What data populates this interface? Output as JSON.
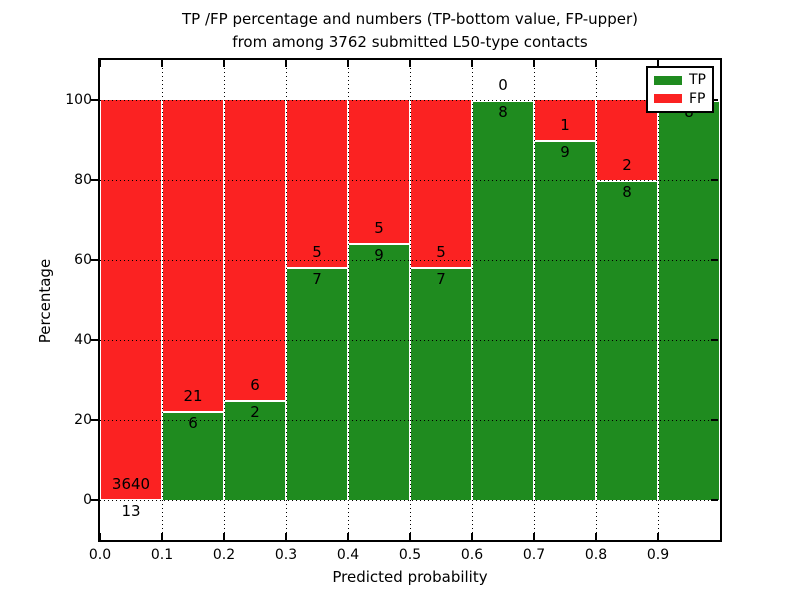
{
  "title": {
    "line1": "TP /FP percentage and numbers (TP-bottom value, FP-upper)",
    "line2": "from among 3762 submitted L50-type contacts"
  },
  "chart_data": {
    "type": "bar",
    "stacked": true,
    "title": "TP /FP percentage and numbers (TP-bottom value, FP-upper) from among 3762 submitted L50-type contacts",
    "xlabel": "Predicted probability",
    "ylabel": "Percentage",
    "xlim": [
      0.0,
      1.0
    ],
    "ylim": [
      -10,
      110
    ],
    "grid": "dotted",
    "x_tick_labels": [
      "0.0",
      "0.1",
      "0.2",
      "0.3",
      "0.4",
      "0.5",
      "0.6",
      "0.7",
      "0.8",
      "0.9"
    ],
    "y_ticks": [
      0,
      20,
      40,
      60,
      80,
      100
    ],
    "colors": {
      "tp": "#1f8b1f",
      "fp": "#fb2222"
    },
    "legend": {
      "position": "upper-right",
      "entries": [
        {
          "label": "TP",
          "color": "#1f8b1f"
        },
        {
          "label": "FP",
          "color": "#fb2222"
        }
      ]
    },
    "bars": [
      {
        "range": [
          0.0,
          0.1
        ],
        "tp": 13,
        "fp": 3640,
        "tp_pct": 0.36
      },
      {
        "range": [
          0.1,
          0.2
        ],
        "tp": 6,
        "fp": 21,
        "tp_pct": 22.2
      },
      {
        "range": [
          0.2,
          0.3
        ],
        "tp": 2,
        "fp": 6,
        "tp_pct": 25.0
      },
      {
        "range": [
          0.3,
          0.4
        ],
        "tp": 7,
        "fp": 5,
        "tp_pct": 58.3
      },
      {
        "range": [
          0.4,
          0.5
        ],
        "tp": 9,
        "fp": 5,
        "tp_pct": 64.3
      },
      {
        "range": [
          0.5,
          0.6
        ],
        "tp": 7,
        "fp": 5,
        "tp_pct": 58.3
      },
      {
        "range": [
          0.6,
          0.7
        ],
        "tp": 8,
        "fp": 0,
        "tp_pct": 100
      },
      {
        "range": [
          0.7,
          0.8
        ],
        "tp": 9,
        "fp": 1,
        "tp_pct": 90
      },
      {
        "range": [
          0.8,
          0.9
        ],
        "tp": 8,
        "fp": 2,
        "tp_pct": 80
      },
      {
        "range": [
          0.9,
          1.0
        ],
        "tp": 8,
        "fp": 0,
        "tp_pct": 100
      }
    ]
  }
}
